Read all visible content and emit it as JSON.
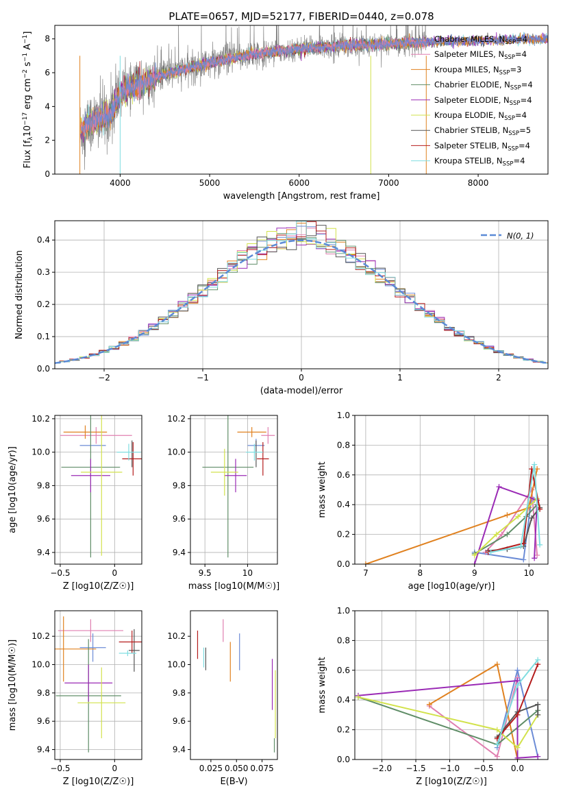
{
  "figure": {
    "title": "PLATE=0657, MJD=52177, FIBERID=0440, z=0.078"
  },
  "chart_data": [
    {
      "id": "spectrum",
      "type": "line",
      "title": "PLATE=0657, MJD=52177, FIBERID=0440, z=0.078",
      "xlabel": "wavelength [Angstrom, rest frame]",
      "ylabel": "Flux [f_λ 10^-17 erg cm^-2 s^-1 A^-1]",
      "xlim": [
        3270,
        8780
      ],
      "ylim": [
        0,
        8.8
      ],
      "xticks": [
        4000,
        5000,
        6000,
        7000,
        8000
      ],
      "yticks": [
        0,
        2,
        4,
        6,
        8
      ],
      "grid": false,
      "legend_position": "right",
      "legend": [
        {
          "label": "Chabrier MILES, N_SSP=4",
          "color": "#6b8bd6"
        },
        {
          "label": "Salpeter MILES, N_SSP=4",
          "color": "#e07fb0"
        },
        {
          "label": "Kroupa MILES, N_SSP=3",
          "color": "#e0811f"
        },
        {
          "label": "Chabrier ELODIE, N_SSP=4",
          "color": "#5f8d67"
        },
        {
          "label": "Salpeter ELODIE, N_SSP=4",
          "color": "#9a2ab5"
        },
        {
          "label": "Kroupa ELODIE, N_SSP=4",
          "color": "#d2e24b"
        },
        {
          "label": "Chabrier STELIB, N_SSP=5",
          "color": "#555555"
        },
        {
          "label": "Salpeter STELIB, N_SSP=4",
          "color": "#b41c1c"
        },
        {
          "label": "Kroupa STELIB, N_SSP=4",
          "color": "#7fdde0"
        }
      ],
      "data_series": {
        "name": "data",
        "color": "#808080",
        "x_range": [
          3550,
          7420
        ]
      },
      "model_continuum_points": [
        [
          3550,
          2.6
        ],
        [
          3700,
          3.1
        ],
        [
          3900,
          3.6
        ],
        [
          4000,
          4.8
        ],
        [
          4200,
          5.3
        ],
        [
          4500,
          5.9
        ],
        [
          5000,
          6.6
        ],
        [
          5500,
          7.1
        ],
        [
          6000,
          7.4
        ],
        [
          6500,
          7.6
        ],
        [
          7000,
          7.7
        ],
        [
          7400,
          7.8
        ],
        [
          8000,
          7.9
        ],
        [
          8800,
          8.0
        ]
      ]
    },
    {
      "id": "residual-hist",
      "type": "line",
      "xlabel": "(data-model)/error",
      "ylabel": "Normed distribution",
      "xlim": [
        -2.5,
        2.5
      ],
      "ylim": [
        0,
        0.46
      ],
      "xticks": [
        -2,
        -1,
        0,
        1,
        2
      ],
      "yticks": [
        0.0,
        0.1,
        0.2,
        0.3,
        0.4
      ],
      "grid": true,
      "legend_position": "top-right",
      "reference_curve": {
        "label": "N(0, 1)",
        "mean": 0,
        "sigma": 1,
        "color": "#5b8ad6"
      }
    },
    {
      "id": "age-vs-Z",
      "type": "scatter",
      "xlabel": "Z [log10(Z/Z☉)]",
      "ylabel": "age [log10(age/yr)]",
      "xlim": [
        -0.55,
        0.25
      ],
      "ylim": [
        9.33,
        10.22
      ],
      "xticks": [
        -0.5,
        0.0
      ],
      "yticks": [
        9.4,
        9.6,
        9.8,
        10.0,
        10.2
      ],
      "grid": true,
      "points": [
        {
          "x": -0.2,
          "y": 10.04,
          "xerr": 0.12,
          "yerr": 0.0,
          "color": "#6b8bd6"
        },
        {
          "x": -0.17,
          "y": 10.1,
          "xerr": 0.33,
          "yerr": 0.05,
          "color": "#e07fb0"
        },
        {
          "x": -0.27,
          "y": 10.12,
          "xerr": 0.2,
          "yerr": 0.04,
          "color": "#e0811f"
        },
        {
          "x": -0.22,
          "y": 9.91,
          "xerr": 0.27,
          "yerr": 0.54,
          "color": "#5f8d67"
        },
        {
          "x": -0.22,
          "y": 9.86,
          "xerr": 0.18,
          "yerr": 0.1,
          "color": "#9a2ab5"
        },
        {
          "x": -0.12,
          "y": 9.88,
          "xerr": 0.19,
          "yerr": 0.5,
          "color": "#d2e24b"
        },
        {
          "x": 0.16,
          "y": 9.99,
          "xerr": 0.0,
          "yerr": 0.08,
          "color": "#555555"
        },
        {
          "x": 0.17,
          "y": 9.96,
          "xerr": 0.1,
          "yerr": 0.1,
          "color": "#b41c1c"
        },
        {
          "x": 0.13,
          "y": 10.0,
          "xerr": 0.11,
          "yerr": 0.05,
          "color": "#7fdde0"
        }
      ]
    },
    {
      "id": "age-vs-mass",
      "type": "scatter",
      "xlabel": "mass [log10(M/M☉)]",
      "xlim": [
        9.33,
        10.35
      ],
      "ylim": [
        9.33,
        10.22
      ],
      "xticks": [
        9.5,
        10.0
      ],
      "yticks": [
        9.4,
        9.6,
        9.8,
        10.0,
        10.2
      ],
      "grid": true,
      "points": [
        {
          "x": 10.1,
          "y": 10.04,
          "xerr": 0.1,
          "yerr": 0.04,
          "color": "#6b8bd6"
        },
        {
          "x": 10.24,
          "y": 10.1,
          "xerr": 0.08,
          "yerr": 0.05,
          "color": "#e07fb0"
        },
        {
          "x": 10.05,
          "y": 10.12,
          "xerr": 0.17,
          "yerr": 0.03,
          "color": "#e0811f"
        },
        {
          "x": 9.77,
          "y": 9.91,
          "xerr": 0.3,
          "yerr": 0.54,
          "color": "#5f8d67"
        },
        {
          "x": 9.86,
          "y": 9.86,
          "xerr": 0.13,
          "yerr": 0.1,
          "color": "#9a2ab5"
        },
        {
          "x": 9.73,
          "y": 9.88,
          "xerr": 0.16,
          "yerr": 0.14,
          "color": "#d2e24b"
        },
        {
          "x": 10.1,
          "y": 9.99,
          "xerr": 0.0,
          "yerr": 0.08,
          "color": "#555555"
        },
        {
          "x": 10.18,
          "y": 9.96,
          "xerr": 0.07,
          "yerr": 0.1,
          "color": "#b41c1c"
        },
        {
          "x": 10.08,
          "y": 10.0,
          "xerr": 0.1,
          "yerr": 0.05,
          "color": "#7fdde0"
        }
      ]
    },
    {
      "id": "massweight-vs-age",
      "type": "line",
      "xlabel": "age [log10(age/yr)]",
      "ylabel": "mass weight",
      "xlim": [
        6.8,
        10.35
      ],
      "ylim": [
        0,
        1.0
      ],
      "xticks": [
        7,
        8,
        9,
        10
      ],
      "yticks": [
        0.0,
        0.2,
        0.4,
        0.6,
        0.8,
        1.0
      ],
      "grid": true,
      "series": [
        {
          "color": "#6b8bd6",
          "x": [
            9.0,
            9.9,
            10.05,
            10.1
          ],
          "y": [
            0.08,
            0.03,
            0.45,
            0.43
          ]
        },
        {
          "color": "#e07fb0",
          "x": [
            9.2,
            9.5,
            10.05,
            10.15
          ],
          "y": [
            0.08,
            0.2,
            0.5,
            0.06
          ]
        },
        {
          "color": "#e0811f",
          "x": [
            7.0,
            9.6,
            10.0,
            10.15
          ],
          "y": [
            0.0,
            0.33,
            0.38,
            0.64
          ]
        },
        {
          "color": "#5f8d67",
          "x": [
            9.0,
            9.6,
            9.95,
            10.15
          ],
          "y": [
            0.07,
            0.2,
            0.32,
            0.4
          ]
        },
        {
          "color": "#9a2ab5",
          "x": [
            9.0,
            9.45,
            10.15,
            10.1
          ],
          "y": [
            0.0,
            0.52,
            0.43,
            0.04
          ]
        },
        {
          "color": "#d2e24b",
          "x": [
            9.0,
            9.4,
            9.8,
            10.15
          ],
          "y": [
            0.06,
            0.2,
            0.32,
            0.44
          ]
        },
        {
          "color": "#555555",
          "x": [
            9.25,
            9.6,
            9.9,
            10.05,
            10.2
          ],
          "y": [
            0.09,
            0.1,
            0.12,
            0.31,
            0.38
          ]
        },
        {
          "color": "#b41c1c",
          "x": [
            9.25,
            9.9,
            10.05,
            10.2
          ],
          "y": [
            0.08,
            0.14,
            0.64,
            0.37
          ]
        },
        {
          "color": "#7fdde0",
          "x": [
            9.3,
            9.85,
            10.1,
            10.2
          ],
          "y": [
            0.08,
            0.12,
            0.67,
            0.13
          ]
        }
      ]
    },
    {
      "id": "mass-vs-Z",
      "type": "scatter",
      "xlabel": "Z [log10(Z/Z☉)]",
      "ylabel": "mass [log10(M/M☉)]",
      "xlim": [
        -0.55,
        0.25
      ],
      "ylim": [
        9.33,
        10.38
      ],
      "xticks": [
        -0.5,
        0.0
      ],
      "yticks": [
        9.4,
        9.6,
        9.8,
        10.0,
        10.2
      ],
      "grid": true,
      "points": [
        {
          "x": -0.2,
          "y": 10.12,
          "xerr": 0.12,
          "yerr": 0.1,
          "color": "#6b8bd6"
        },
        {
          "x": -0.22,
          "y": 10.24,
          "xerr": 0.3,
          "yerr": 0.08,
          "color": "#e07fb0"
        },
        {
          "x": -0.47,
          "y": 10.11,
          "xerr": 0.3,
          "yerr": 0.23,
          "color": "#e0811f"
        },
        {
          "x": -0.24,
          "y": 9.78,
          "xerr": 0.3,
          "yerr": 0.4,
          "color": "#5f8d67"
        },
        {
          "x": -0.24,
          "y": 9.87,
          "xerr": 0.22,
          "yerr": 0.13,
          "color": "#9a2ab5"
        },
        {
          "x": -0.12,
          "y": 9.73,
          "xerr": 0.22,
          "yerr": 0.25,
          "color": "#d2e24b"
        },
        {
          "x": 0.18,
          "y": 10.1,
          "xerr": 0.05,
          "yerr": 0.15,
          "color": "#555555"
        },
        {
          "x": 0.16,
          "y": 10.16,
          "xerr": 0.12,
          "yerr": 0.08,
          "color": "#b41c1c"
        },
        {
          "x": 0.12,
          "y": 10.08,
          "xerr": 0.08,
          "yerr": 0.02,
          "color": "#7fdde0"
        }
      ]
    },
    {
      "id": "ebv",
      "type": "scatter",
      "xlabel": "E(B-V)",
      "xlim": [
        0.005,
        0.09
      ],
      "ylim": [
        9.33,
        10.38
      ],
      "xticks": [
        0.025,
        0.05,
        0.075
      ],
      "xtick_labels": [
        "0.025",
        "0.050",
        "0.075"
      ],
      "yticks": [
        9.4,
        9.6,
        9.8,
        10.0,
        10.2
      ],
      "grid": false,
      "points": [
        {
          "x": 0.053,
          "y": 10.09,
          "xerr": 0,
          "yerr": 0.13,
          "color": "#6b8bd6"
        },
        {
          "x": 0.037,
          "y": 10.24,
          "xerr": 0,
          "yerr": 0.08,
          "color": "#e07fb0"
        },
        {
          "x": 0.044,
          "y": 10.02,
          "xerr": 0,
          "yerr": 0.14,
          "color": "#e0811f"
        },
        {
          "x": 0.087,
          "y": 9.43,
          "xerr": 0,
          "yerr": 0.05,
          "color": "#5f8d67"
        },
        {
          "x": 0.085,
          "y": 9.86,
          "xerr": 0,
          "yerr": 0.18,
          "color": "#9a2ab5"
        },
        {
          "x": 0.088,
          "y": 9.72,
          "xerr": 0,
          "yerr": 0.24,
          "color": "#d2e24b"
        },
        {
          "x": 0.02,
          "y": 10.04,
          "xerr": 0,
          "yerr": 0.08,
          "color": "#555555"
        },
        {
          "x": 0.012,
          "y": 10.14,
          "xerr": 0,
          "yerr": 0.1,
          "color": "#b41c1c"
        },
        {
          "x": 0.018,
          "y": 10.05,
          "xerr": 0,
          "yerr": 0.07,
          "color": "#7fdde0"
        }
      ]
    },
    {
      "id": "massweight-vs-Z",
      "type": "line",
      "xlabel": "Z [log10(Z/Z☉)]",
      "ylabel": "mass weight",
      "xlim": [
        -2.4,
        0.45
      ],
      "ylim": [
        0,
        1.0
      ],
      "xticks": [
        -2.0,
        -1.5,
        -1.0,
        -0.5,
        0.0
      ],
      "xtick_labels": [
        "−2.0",
        "−1.5",
        "−1.0",
        "−0.5",
        "0.0"
      ],
      "yticks": [
        0.0,
        0.2,
        0.4,
        0.6,
        0.8,
        1.0
      ],
      "grid": true,
      "series": [
        {
          "color": "#6b8bd6",
          "x": [
            -0.3,
            0.0,
            0.3
          ],
          "y": [
            0.08,
            0.6,
            0.02
          ]
        },
        {
          "color": "#e07fb0",
          "x": [
            -1.3,
            -0.3,
            0.0
          ],
          "y": [
            0.36,
            0.02,
            0.55
          ]
        },
        {
          "color": "#e0811f",
          "x": [
            -1.3,
            -0.3,
            0.0
          ],
          "y": [
            0.37,
            0.64,
            0.0
          ]
        },
        {
          "color": "#5f8d67",
          "x": [
            -2.35,
            -0.3,
            0.3
          ],
          "y": [
            0.42,
            0.1,
            0.33
          ]
        },
        {
          "color": "#9a2ab5",
          "x": [
            -2.35,
            0.0,
            0.0,
            0.3
          ],
          "y": [
            0.43,
            0.53,
            0.01,
            0.02
          ]
        },
        {
          "color": "#d2e24b",
          "x": [
            -2.35,
            -0.3,
            0.0,
            0.3
          ],
          "y": [
            0.42,
            0.2,
            0.08,
            0.3
          ]
        },
        {
          "color": "#555555",
          "x": [
            -0.3,
            0.0,
            0.3,
            0.3
          ],
          "y": [
            0.15,
            0.32,
            0.37,
            0.3
          ]
        },
        {
          "color": "#b41c1c",
          "x": [
            -0.3,
            0.0,
            0.3
          ],
          "y": [
            0.14,
            0.3,
            0.64
          ]
        },
        {
          "color": "#7fdde0",
          "x": [
            -0.3,
            0.0,
            0.3
          ],
          "y": [
            0.1,
            0.5,
            0.67
          ]
        }
      ]
    }
  ]
}
